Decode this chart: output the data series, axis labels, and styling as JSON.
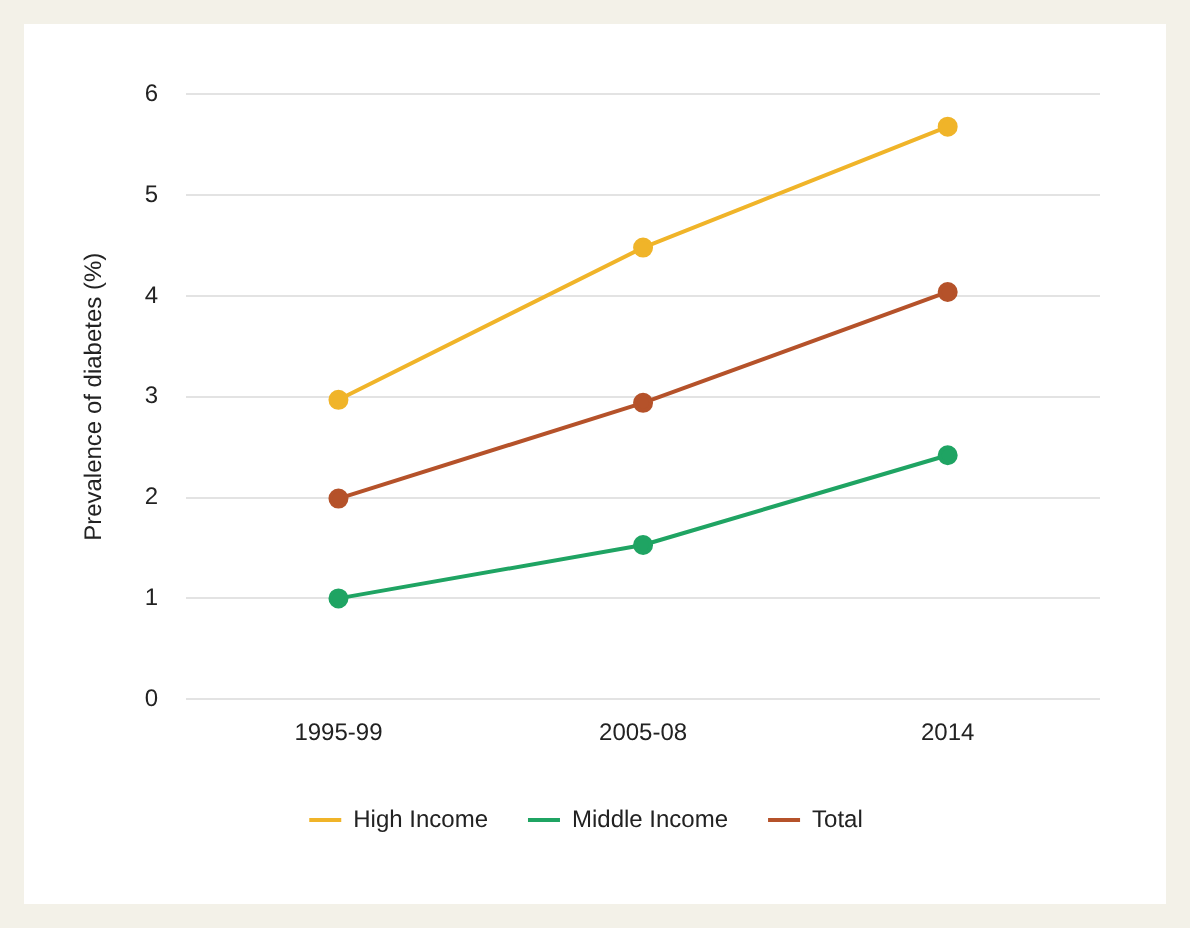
{
  "chart_data": {
    "type": "line",
    "ylabel": "Prevalence of diabetes (%)",
    "categories": [
      "1995-99",
      "2005-08",
      "2014"
    ],
    "series": [
      {
        "name": "High Income",
        "color": "#f0b429",
        "values": [
          2.97,
          4.48,
          5.68
        ]
      },
      {
        "name": "Middle Income",
        "color": "#1fa463",
        "values": [
          1.0,
          1.53,
          2.42
        ]
      },
      {
        "name": "Total",
        "color": "#b5522a",
        "values": [
          1.99,
          2.94,
          4.04
        ]
      }
    ],
    "ylim": [
      0,
      6
    ],
    "yticks": [
      0,
      1,
      2,
      3,
      4,
      5,
      6
    ],
    "grid": "y",
    "legend": "bottom",
    "marker": "circle",
    "line_style": "solid"
  }
}
